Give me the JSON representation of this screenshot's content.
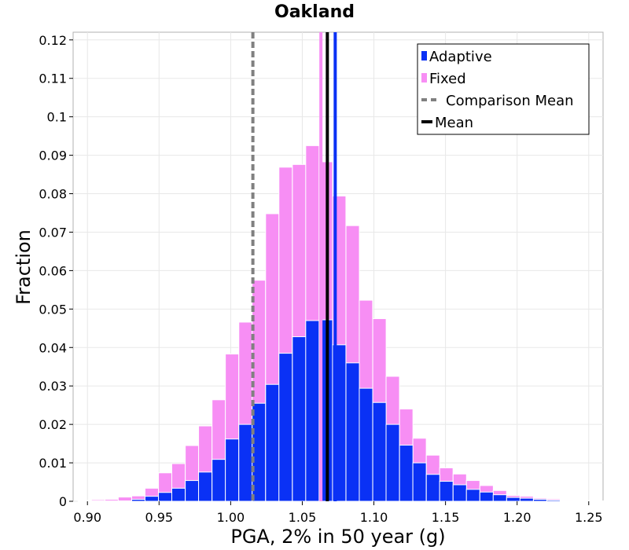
{
  "colors": {
    "adaptive": "#0a31f5",
    "fixed": "#f78ef4",
    "comparison_mean": "#808080",
    "mean": "#000000",
    "grid": "#e8e8e8"
  },
  "chart_data": {
    "type": "bar",
    "title": "Oakland",
    "xlabel": "PGA, 2% in 50 year (g)",
    "ylabel": "Fraction",
    "xlim": [
      0.89,
      1.26
    ],
    "ylim": [
      0,
      0.122
    ],
    "xticks": [
      "0.90",
      "0.95",
      "1.00",
      "1.05",
      "1.10",
      "1.15",
      "1.20",
      "1.25"
    ],
    "xtick_values": [
      0.9,
      0.95,
      1.0,
      1.05,
      1.1,
      1.15,
      1.2,
      1.25
    ],
    "yticks": [
      "0",
      "0.01",
      "0.02",
      "0.03",
      "0.04",
      "0.05",
      "0.06",
      "0.07",
      "0.08",
      "0.09",
      "0.1",
      "0.11",
      "0.12"
    ],
    "ytick_values": [
      0,
      0.01,
      0.02,
      0.03,
      0.04,
      0.05,
      0.06,
      0.07,
      0.08,
      0.09,
      0.1,
      0.11,
      0.12
    ],
    "bin_width": 0.00935,
    "bin_starts": [
      0.8935,
      0.9028,
      0.9122,
      0.9215,
      0.9309,
      0.9402,
      0.9496,
      0.9589,
      0.9683,
      0.9776,
      0.987,
      0.9963,
      1.0057,
      1.015,
      1.0244,
      1.0337,
      1.0431,
      1.0524,
      1.0618,
      1.0711,
      1.0805,
      1.0898,
      1.0992,
      1.1085,
      1.1179,
      1.1272,
      1.1366,
      1.1459,
      1.1553,
      1.1646,
      1.174,
      1.1833,
      1.1927,
      1.202,
      1.2114,
      1.2207,
      1.2301,
      1.2394,
      1.2488,
      1.2581
    ],
    "series": [
      {
        "name": "Fixed",
        "values": [
          0.0002,
          0.0004,
          0.0005,
          0.0011,
          0.0014,
          0.0034,
          0.0074,
          0.0098,
          0.0145,
          0.0196,
          0.0264,
          0.0383,
          0.0466,
          0.0575,
          0.0748,
          0.0869,
          0.0876,
          0.0925,
          0.0883,
          0.0794,
          0.0717,
          0.0523,
          0.0475,
          0.0325,
          0.024,
          0.0164,
          0.012,
          0.0087,
          0.0071,
          0.0054,
          0.0041,
          0.0028,
          0.0015,
          0.0013,
          0.0008,
          0.0006,
          0.0003,
          0.0002,
          0.0002,
          0.0001
        ]
      },
      {
        "name": "Adaptive",
        "values": [
          0.0,
          0.0001,
          0.0001,
          0.0001,
          0.0005,
          0.0013,
          0.0023,
          0.0034,
          0.0054,
          0.0076,
          0.0109,
          0.0162,
          0.02,
          0.0255,
          0.0304,
          0.0385,
          0.0428,
          0.047,
          0.0472,
          0.0407,
          0.036,
          0.0294,
          0.0257,
          0.02,
          0.0146,
          0.01,
          0.007,
          0.0052,
          0.0043,
          0.0031,
          0.0024,
          0.0017,
          0.001,
          0.0008,
          0.0005,
          0.0003,
          0.0001,
          0.0001,
          0.0,
          0.0
        ]
      }
    ],
    "vertical_lines": [
      {
        "name": "Comparison Mean",
        "series": "Fixed",
        "x": 1.063,
        "style": "solid",
        "color": "#f78ef4"
      },
      {
        "name": "Comparison Mean",
        "series": "Adaptive",
        "x": 1.0155,
        "style": "dashed",
        "color": "#808080"
      },
      {
        "name": "Mean",
        "series": "Adaptive",
        "x": 1.073,
        "style": "solid",
        "color": "#0a31f5"
      },
      {
        "name": "Mean",
        "series": "Fixed",
        "x": 1.0675,
        "style": "solid",
        "color": "#000000"
      }
    ],
    "legend": {
      "position": "top-right",
      "entries": [
        {
          "label": "Adaptive",
          "kind": "square",
          "color": "#0a31f5"
        },
        {
          "label": "Fixed",
          "kind": "square",
          "color": "#f78ef4"
        },
        {
          "label": "Comparison Mean",
          "kind": "dashed",
          "color": "#808080"
        },
        {
          "label": "Mean",
          "kind": "solid",
          "color": "#000000"
        }
      ]
    }
  }
}
